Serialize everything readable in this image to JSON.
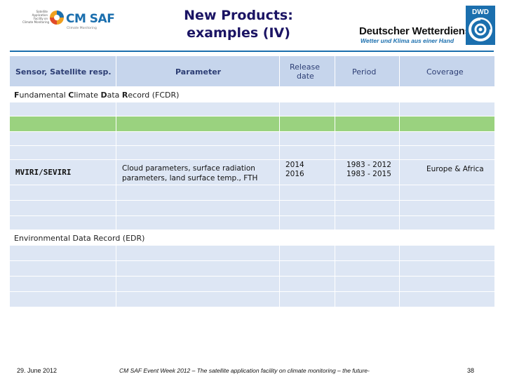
{
  "header": {
    "cmsaf_small_lines": [
      "Satellite",
      "Application",
      "Facility on",
      "Climate Monitoring"
    ],
    "cmsaf_name": "CM SAF",
    "cmsaf_sub": "Climate Monitoring",
    "title_line1": "New Products:",
    "title_line2": "examples (IV)",
    "dwd_name": "Deutscher Wetterdienst",
    "dwd_slogan": "Wetter und Klima aus einer Hand",
    "dwd_badge": "DWD"
  },
  "table": {
    "headers": {
      "sensor": "Sensor, Satellite resp.",
      "parameter": "Parameter",
      "release_line1": "Release",
      "release_line2": "date",
      "period": "Period",
      "coverage": "Coverage"
    },
    "fcdr_label": {
      "f": "F",
      "f_rest": "undamental ",
      "c": "C",
      "c_rest": "limate ",
      "d": "D",
      "d_rest": "ata ",
      "r": "R",
      "r_rest": "ecord (FCDR)"
    },
    "row_main": {
      "sensor": "MVIRI/SEVIRI",
      "parameter_line1": "Cloud parameters, surface radiation",
      "parameter_line2": "parameters, land surface temp., FTH",
      "release_line1": "2014",
      "release_line2": "2016",
      "period_line1": "1983 - 2012",
      "period_line2": "1983 - 2015",
      "coverage": "Europe & Africa"
    },
    "edr_label": "Environmental Data Record (EDR)"
  },
  "footer": {
    "date": "29. June 2012",
    "event": "CM SAF Event Week 2012 – The satellite application facility on climate monitoring – the future-",
    "page": "38"
  },
  "colors": {
    "header_row": "#c6d5ec",
    "light_row": "#dde6f4",
    "green_row": "#9ad27f",
    "title": "#1b1464",
    "accent": "#1b6fae"
  }
}
